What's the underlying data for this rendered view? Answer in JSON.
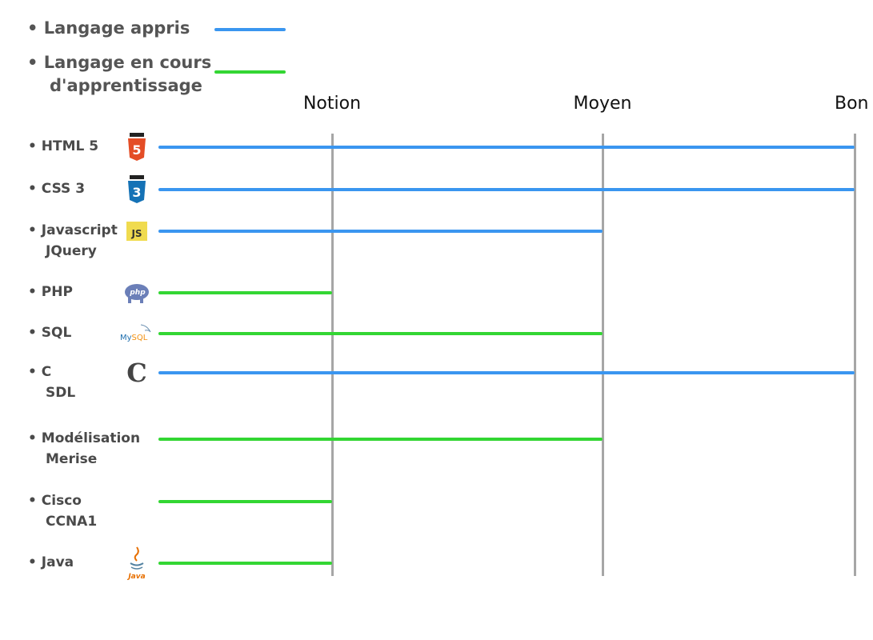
{
  "legend": [
    {
      "label": "Langage appris",
      "color": "#3a96f0"
    },
    {
      "label_lines": [
        "Langage en cours",
        "d'apprentissage"
      ],
      "color": "#33d633"
    }
  ],
  "chart_data": {
    "type": "bar",
    "orientation": "horizontal",
    "x_levels": [
      "Notion",
      "Moyen",
      "Bon"
    ],
    "categories": [
      {
        "lines": [
          "HTML 5"
        ],
        "icon": "html5-icon",
        "level": 3,
        "status": "Langage appris"
      },
      {
        "lines": [
          "CSS 3"
        ],
        "icon": "css3-icon",
        "level": 3,
        "status": "Langage appris"
      },
      {
        "lines": [
          "Javascript",
          "JQuery"
        ],
        "icon": "js-icon",
        "level": 2,
        "status": "Langage appris"
      },
      {
        "lines": [
          "PHP"
        ],
        "icon": "php-icon",
        "level": 1,
        "status": "Langage en cours d'apprentissage"
      },
      {
        "lines": [
          "SQL"
        ],
        "icon": "mysql-icon",
        "level": 2,
        "status": "Langage en cours d'apprentissage"
      },
      {
        "lines": [
          "C",
          "SDL"
        ],
        "icon": "c-icon",
        "level": 3,
        "status": "Langage appris"
      },
      {
        "lines": [
          "Modélisation",
          "Merise"
        ],
        "icon": "",
        "level": 2,
        "status": "Langage en cours d'apprentissage"
      },
      {
        "lines": [
          "Cisco",
          "CCNA1"
        ],
        "icon": "",
        "level": 1,
        "status": "Langage en cours d'apprentissage"
      },
      {
        "lines": [
          "Java"
        ],
        "icon": "java-icon",
        "level": 1,
        "status": "Langage en cours d'apprentissage"
      }
    ],
    "colors": {
      "Langage appris": "#3a96f0",
      "Langage en cours d'apprentissage": "#33d633"
    },
    "icon_text": {
      "html5-icon": "5",
      "css3-icon": "3",
      "js-icon": "JS",
      "php-icon": "php",
      "mysql-icon": "MySQL",
      "c-icon": "C",
      "java-icon": "Java"
    },
    "grid": true
  }
}
